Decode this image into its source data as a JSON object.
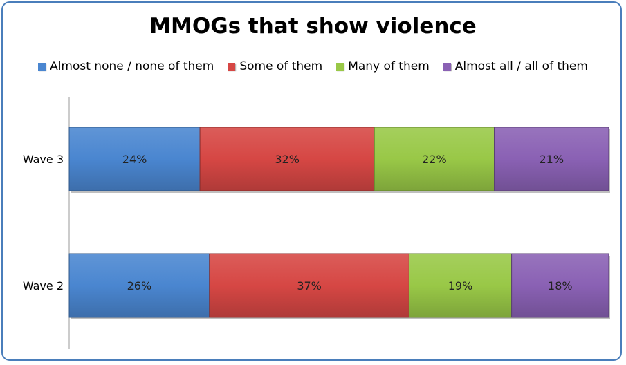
{
  "chart_data": {
    "type": "bar",
    "orientation": "horizontal",
    "stacked": true,
    "title": "MMOGs that show violence",
    "categories": [
      "Wave 3",
      "Wave 2"
    ],
    "series": [
      {
        "name": "Almost none / none of them",
        "values": [
          24,
          26
        ],
        "labels": [
          "24%",
          "26%"
        ],
        "color": "#4a86d0"
      },
      {
        "name": "Some of them",
        "values": [
          32,
          37
        ],
        "labels": [
          "32%",
          "37%"
        ],
        "color": "#d64744"
      },
      {
        "name": "Many of them",
        "values": [
          22,
          19
        ],
        "labels": [
          "22%",
          "19%"
        ],
        "color": "#99c847"
      },
      {
        "name": "Almost all / all of them",
        "values": [
          21,
          18
        ],
        "labels": [
          "21%",
          "18%"
        ],
        "color": "#8a61b4"
      }
    ],
    "legend_position": "top",
    "grid": false
  }
}
